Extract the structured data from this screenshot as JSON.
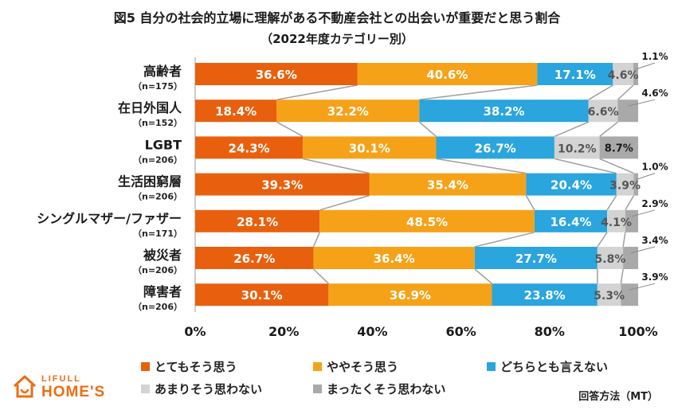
{
  "chart_data": {
    "type": "bar",
    "orientation": "horizontal",
    "stacked": true,
    "title": "図5 自分の社会的立場に理解がある不動産会社との出会いが重要だと思う割合",
    "subtitle": "（2022年度カテゴリー別）",
    "categories": [
      {
        "label": "高齢者",
        "n": "（n=175）"
      },
      {
        "label": "在日外国人",
        "n": "（n=152）"
      },
      {
        "label": "LGBT",
        "n": "（n=206）"
      },
      {
        "label": "生活困窮層",
        "n": "（n=206）"
      },
      {
        "label": "シングルマザー/ファザー",
        "n": "（n=171）"
      },
      {
        "label": "被災者",
        "n": "（n=206）"
      },
      {
        "label": "障害者",
        "n": "（n=206）"
      }
    ],
    "series": [
      {
        "name": "とてもそう思う",
        "color": "#e8600e",
        "values": [
          36.6,
          18.4,
          24.3,
          39.3,
          28.1,
          26.7,
          30.1
        ]
      },
      {
        "name": "ややそう思う",
        "color": "#f5a219",
        "values": [
          40.6,
          32.2,
          30.1,
          35.4,
          48.5,
          36.4,
          36.9
        ]
      },
      {
        "name": "どちらとも言えない",
        "color": "#2aa5dd",
        "values": [
          17.1,
          38.2,
          26.7,
          20.4,
          16.4,
          27.7,
          23.8
        ]
      },
      {
        "name": "あまりそう思わない",
        "color": "#d3d3d3",
        "values": [
          4.6,
          6.6,
          10.2,
          3.9,
          4.1,
          5.8,
          5.3
        ]
      },
      {
        "name": "まったくそう思わない",
        "color": "#a9a9a9",
        "values": [
          1.1,
          4.6,
          8.7,
          1.0,
          2.9,
          3.4,
          3.9
        ]
      }
    ],
    "xlim": [
      0,
      100
    ],
    "xticks": [
      "0%",
      "20%",
      "40%",
      "60%",
      "80%",
      "100%"
    ],
    "value_suffix": "%",
    "legend_position": "bottom"
  },
  "brand": {
    "top": "LIFULL",
    "main": "HOME'S"
  },
  "method": "回答方法（MT）"
}
